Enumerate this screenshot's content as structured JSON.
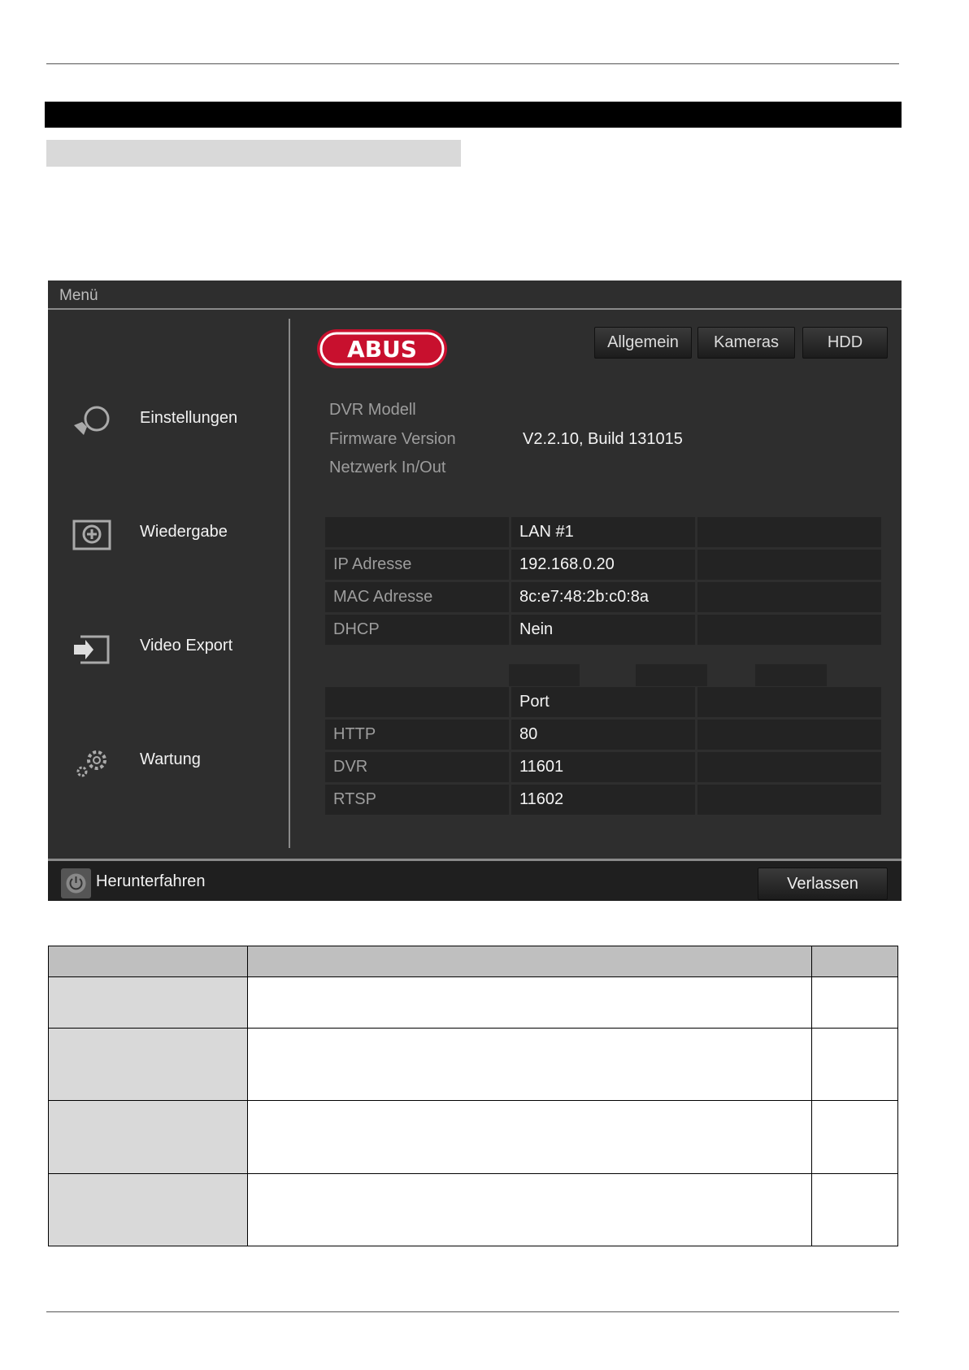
{
  "menu": {
    "title": "Menü",
    "logo_text": "ABUS",
    "tabs": [
      {
        "label": "Allgemein"
      },
      {
        "label": "Kameras"
      },
      {
        "label": "HDD"
      }
    ],
    "sidebar": [
      {
        "label": "Einstellungen",
        "icon": "settings-icon"
      },
      {
        "label": "Wiedergabe",
        "icon": "playback-icon"
      },
      {
        "label": "Video Export",
        "icon": "export-icon"
      },
      {
        "label": "Wartung",
        "icon": "maintenance-icon"
      }
    ],
    "info": {
      "model_label": "DVR Modell",
      "firmware_label": "Firmware Version",
      "firmware_value": "V2.2.10, Build 131015",
      "network_label": "Netzwerk In/Out"
    },
    "lan_table": {
      "header": [
        "",
        "LAN #1",
        ""
      ],
      "rows": [
        [
          "IP Adresse",
          "192.168.0.20",
          ""
        ],
        [
          "MAC Adresse",
          "8c:e7:48:2b:c0:8a",
          ""
        ],
        [
          "DHCP",
          "Nein",
          ""
        ]
      ]
    },
    "port_table": {
      "header": [
        "",
        "Port",
        ""
      ],
      "rows": [
        [
          "HTTP",
          "80",
          ""
        ],
        [
          "DVR",
          "11601",
          ""
        ],
        [
          "RTSP",
          "11602",
          ""
        ]
      ]
    },
    "shutdown_label": "Herunterfahren",
    "exit_label": "Verlassen"
  },
  "colors": {
    "logo_red": "#c8102e",
    "panel": "#2e2e2e"
  }
}
